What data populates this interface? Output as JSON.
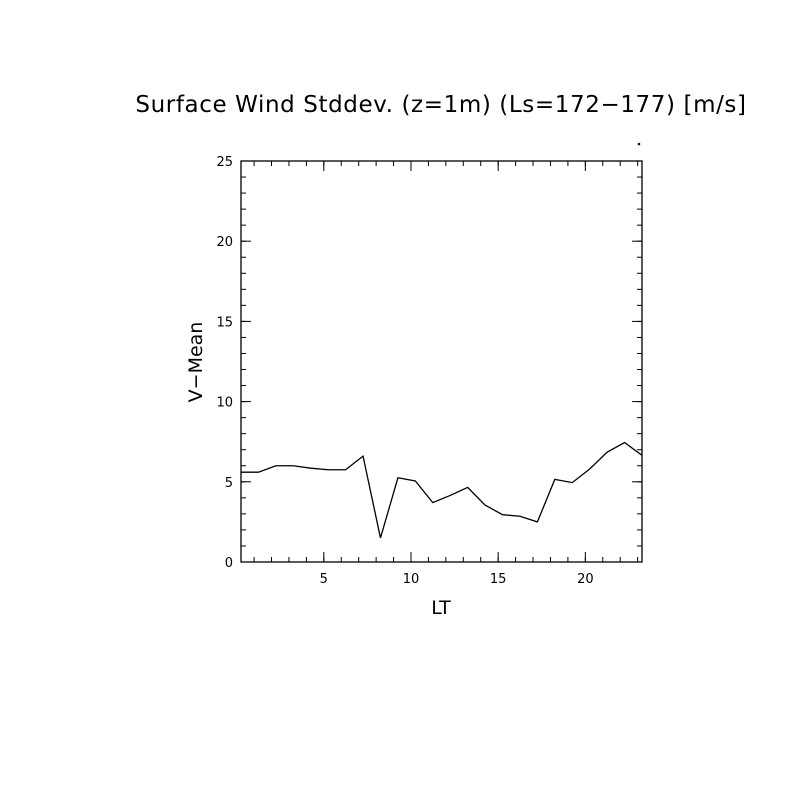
{
  "chart_data": {
    "type": "line",
    "title": "Surface Wind Stddev. (z=1m) (Ls=172−177) [m/s]",
    "xlabel": "LT",
    "ylabel": "V−Mean",
    "xlim": [
      0.25,
      23.25
    ],
    "ylim": [
      0,
      25
    ],
    "x_ticks": [
      5,
      10,
      15,
      20
    ],
    "y_ticks": [
      0,
      5,
      10,
      15,
      20,
      25
    ],
    "x_minor_step": 1,
    "y_minor_step": 1,
    "grid": false,
    "series": [
      {
        "x": [
          0.25,
          1.25,
          2.25,
          3.25,
          4.25,
          5.25,
          6.25,
          7.25,
          8.25,
          9.25,
          10.25,
          11.25,
          12.25,
          13.25,
          14.25,
          15.25,
          16.25,
          17.25,
          18.25,
          19.25,
          20.25,
          21.25,
          22.25,
          23.25
        ],
        "values": [
          5.6,
          5.6,
          6.0,
          6.0,
          5.85,
          5.75,
          5.75,
          6.6,
          1.5,
          5.25,
          5.05,
          3.7,
          4.15,
          4.65,
          3.55,
          2.95,
          2.85,
          2.5,
          5.15,
          4.95,
          5.8,
          6.85,
          7.45,
          6.65
        ]
      }
    ]
  }
}
